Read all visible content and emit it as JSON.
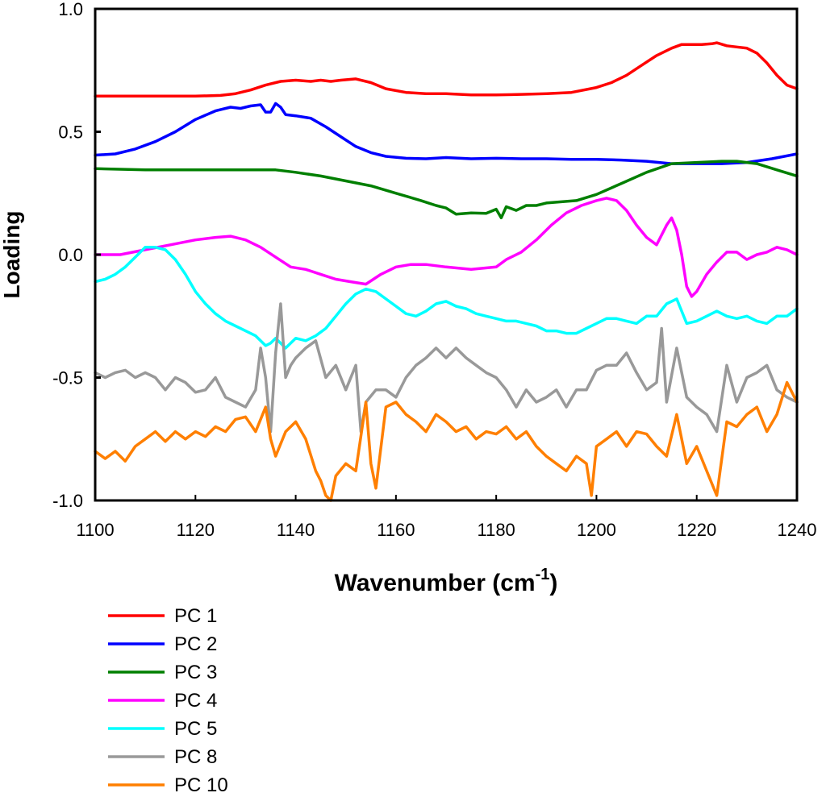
{
  "chart_data": {
    "type": "line",
    "xlabel": "Wavenumber (cm",
    "xlabel_sup": "-1",
    "xlabel_close": ")",
    "ylabel": "Loading",
    "xlim": [
      1100,
      1240
    ],
    "ylim": [
      -1.0,
      1.0
    ],
    "x_ticks": [
      1100,
      1120,
      1140,
      1160,
      1180,
      1200,
      1220,
      1240
    ],
    "x_tick_labels": [
      "1100",
      "1120",
      "1140",
      "1160",
      "1180",
      "1200",
      "1220",
      "1240"
    ],
    "y_ticks": [
      1.0,
      0.5,
      0.0,
      -0.5,
      -1.0
    ],
    "y_tick_labels": [
      "1.0",
      "0.5",
      "0.0",
      "-0.5",
      "-1.0"
    ],
    "grid": false,
    "legend_position": "below-left",
    "series": [
      {
        "name": "PC 1",
        "color": "#ff0000",
        "x": [
          1100,
          1105,
          1110,
          1115,
          1120,
          1125,
          1128,
          1131,
          1134,
          1137,
          1140,
          1143,
          1145,
          1147,
          1149,
          1152,
          1155,
          1158,
          1162,
          1166,
          1170,
          1175,
          1180,
          1185,
          1190,
          1195,
          1200,
          1203,
          1206,
          1209,
          1212,
          1215,
          1217,
          1219,
          1221,
          1223,
          1224,
          1226,
          1228,
          1230,
          1232,
          1234,
          1236,
          1238,
          1240
        ],
        "y": [
          0.645,
          0.645,
          0.645,
          0.645,
          0.645,
          0.648,
          0.655,
          0.67,
          0.69,
          0.705,
          0.71,
          0.705,
          0.71,
          0.705,
          0.71,
          0.715,
          0.7,
          0.675,
          0.66,
          0.655,
          0.655,
          0.65,
          0.65,
          0.652,
          0.655,
          0.66,
          0.68,
          0.7,
          0.73,
          0.77,
          0.81,
          0.84,
          0.855,
          0.855,
          0.855,
          0.858,
          0.862,
          0.85,
          0.845,
          0.84,
          0.82,
          0.78,
          0.73,
          0.69,
          0.675
        ]
      },
      {
        "name": "PC 2",
        "color": "#0000ff",
        "x": [
          1100,
          1104,
          1108,
          1112,
          1116,
          1120,
          1124,
          1127,
          1129,
          1131,
          1133,
          1134,
          1135,
          1136,
          1137,
          1138,
          1140,
          1143,
          1146,
          1149,
          1152,
          1155,
          1158,
          1162,
          1166,
          1170,
          1175,
          1180,
          1185,
          1190,
          1195,
          1200,
          1205,
          1210,
          1215,
          1220,
          1225,
          1230,
          1235,
          1240
        ],
        "y": [
          0.405,
          0.41,
          0.43,
          0.46,
          0.5,
          0.55,
          0.585,
          0.6,
          0.595,
          0.605,
          0.61,
          0.58,
          0.58,
          0.615,
          0.6,
          0.57,
          0.565,
          0.555,
          0.52,
          0.48,
          0.44,
          0.415,
          0.4,
          0.392,
          0.39,
          0.395,
          0.39,
          0.392,
          0.39,
          0.39,
          0.388,
          0.388,
          0.385,
          0.38,
          0.37,
          0.37,
          0.37,
          0.375,
          0.39,
          0.41
        ]
      },
      {
        "name": "PC 3",
        "color": "#007f00",
        "x": [
          1100,
          1110,
          1120,
          1130,
          1136,
          1140,
          1145,
          1150,
          1155,
          1160,
          1165,
          1168,
          1170,
          1172,
          1175,
          1178,
          1180,
          1181,
          1182,
          1184,
          1186,
          1188,
          1190,
          1193,
          1196,
          1200,
          1205,
          1210,
          1215,
          1220,
          1225,
          1228,
          1232,
          1236,
          1240
        ],
        "y": [
          0.35,
          0.345,
          0.345,
          0.345,
          0.345,
          0.335,
          0.32,
          0.3,
          0.28,
          0.25,
          0.22,
          0.2,
          0.19,
          0.165,
          0.17,
          0.168,
          0.185,
          0.15,
          0.195,
          0.18,
          0.2,
          0.2,
          0.21,
          0.215,
          0.22,
          0.245,
          0.29,
          0.335,
          0.37,
          0.375,
          0.38,
          0.38,
          0.37,
          0.345,
          0.32
        ]
      },
      {
        "name": "PC 4",
        "color": "#ff00ff",
        "x": [
          1100,
          1105,
          1110,
          1115,
          1120,
          1124,
          1127,
          1130,
          1133,
          1136,
          1139,
          1142,
          1145,
          1148,
          1151,
          1154,
          1157,
          1160,
          1163,
          1166,
          1170,
          1175,
          1180,
          1182,
          1185,
          1188,
          1191,
          1194,
          1197,
          1200,
          1202,
          1204,
          1206,
          1208,
          1210,
          1212,
          1214,
          1215,
          1216,
          1217,
          1218,
          1219,
          1220,
          1222,
          1224,
          1226,
          1228,
          1230,
          1232,
          1234,
          1236,
          1238,
          1240
        ],
        "y": [
          0.0,
          0.0,
          0.02,
          0.04,
          0.06,
          0.07,
          0.075,
          0.06,
          0.03,
          -0.01,
          -0.05,
          -0.06,
          -0.08,
          -0.1,
          -0.11,
          -0.12,
          -0.08,
          -0.05,
          -0.04,
          -0.04,
          -0.05,
          -0.06,
          -0.05,
          -0.02,
          0.01,
          0.06,
          0.12,
          0.17,
          0.2,
          0.22,
          0.23,
          0.22,
          0.18,
          0.12,
          0.07,
          0.04,
          0.12,
          0.15,
          0.1,
          0.0,
          -0.13,
          -0.17,
          -0.15,
          -0.08,
          -0.03,
          0.01,
          0.01,
          -0.02,
          0.0,
          0.01,
          0.03,
          0.02,
          0.0
        ]
      },
      {
        "name": "PC 5",
        "color": "#00ffff",
        "x": [
          1100,
          1102,
          1104,
          1106,
          1108,
          1110,
          1112,
          1114,
          1116,
          1118,
          1120,
          1122,
          1124,
          1126,
          1128,
          1130,
          1132,
          1134,
          1135,
          1136,
          1138,
          1140,
          1142,
          1144,
          1146,
          1148,
          1150,
          1152,
          1154,
          1156,
          1158,
          1160,
          1162,
          1164,
          1166,
          1168,
          1170,
          1172,
          1174,
          1176,
          1178,
          1180,
          1182,
          1184,
          1186,
          1188,
          1190,
          1192,
          1194,
          1196,
          1198,
          1200,
          1202,
          1204,
          1206,
          1208,
          1210,
          1212,
          1214,
          1216,
          1218,
          1220,
          1222,
          1224,
          1226,
          1228,
          1230,
          1232,
          1234,
          1236,
          1238,
          1240
        ],
        "y": [
          -0.11,
          -0.1,
          -0.08,
          -0.05,
          -0.01,
          0.03,
          0.03,
          0.02,
          -0.02,
          -0.08,
          -0.15,
          -0.2,
          -0.24,
          -0.27,
          -0.29,
          -0.31,
          -0.33,
          -0.37,
          -0.36,
          -0.34,
          -0.38,
          -0.34,
          -0.35,
          -0.33,
          -0.3,
          -0.25,
          -0.2,
          -0.16,
          -0.14,
          -0.15,
          -0.18,
          -0.21,
          -0.24,
          -0.25,
          -0.23,
          -0.2,
          -0.19,
          -0.21,
          -0.22,
          -0.24,
          -0.25,
          -0.26,
          -0.27,
          -0.27,
          -0.28,
          -0.29,
          -0.31,
          -0.31,
          -0.32,
          -0.32,
          -0.3,
          -0.28,
          -0.26,
          -0.26,
          -0.27,
          -0.28,
          -0.25,
          -0.25,
          -0.2,
          -0.18,
          -0.28,
          -0.27,
          -0.25,
          -0.23,
          -0.25,
          -0.26,
          -0.25,
          -0.27,
          -0.28,
          -0.25,
          -0.25,
          -0.22
        ]
      },
      {
        "name": "PC 8",
        "color": "#999999",
        "x": [
          1100,
          1102,
          1104,
          1106,
          1108,
          1110,
          1112,
          1114,
          1116,
          1118,
          1120,
          1122,
          1124,
          1126,
          1128,
          1130,
          1132,
          1133,
          1134,
          1135,
          1136,
          1137,
          1138,
          1139,
          1140,
          1142,
          1144,
          1146,
          1148,
          1150,
          1152,
          1153,
          1154,
          1156,
          1158,
          1160,
          1162,
          1164,
          1166,
          1168,
          1170,
          1172,
          1174,
          1176,
          1178,
          1180,
          1182,
          1184,
          1186,
          1188,
          1190,
          1192,
          1194,
          1196,
          1198,
          1200,
          1202,
          1204,
          1206,
          1208,
          1210,
          1212,
          1213,
          1214,
          1216,
          1218,
          1220,
          1222,
          1224,
          1226,
          1228,
          1230,
          1232,
          1234,
          1236,
          1238,
          1240
        ],
        "y": [
          -0.48,
          -0.5,
          -0.48,
          -0.47,
          -0.5,
          -0.48,
          -0.5,
          -0.55,
          -0.5,
          -0.52,
          -0.56,
          -0.55,
          -0.5,
          -0.58,
          -0.6,
          -0.62,
          -0.55,
          -0.38,
          -0.5,
          -0.72,
          -0.4,
          -0.2,
          -0.5,
          -0.45,
          -0.42,
          -0.38,
          -0.35,
          -0.5,
          -0.45,
          -0.55,
          -0.45,
          -0.72,
          -0.6,
          -0.55,
          -0.55,
          -0.58,
          -0.5,
          -0.45,
          -0.42,
          -0.38,
          -0.42,
          -0.38,
          -0.42,
          -0.45,
          -0.48,
          -0.5,
          -0.55,
          -0.62,
          -0.55,
          -0.6,
          -0.58,
          -0.55,
          -0.62,
          -0.55,
          -0.55,
          -0.47,
          -0.45,
          -0.45,
          -0.4,
          -0.48,
          -0.55,
          -0.52,
          -0.3,
          -0.6,
          -0.38,
          -0.58,
          -0.62,
          -0.65,
          -0.72,
          -0.45,
          -0.6,
          -0.5,
          -0.48,
          -0.45,
          -0.55,
          -0.58,
          -0.6
        ]
      },
      {
        "name": "PC 10",
        "color": "#ff7f00",
        "x": [
          1100,
          1102,
          1104,
          1106,
          1108,
          1110,
          1112,
          1114,
          1116,
          1118,
          1120,
          1122,
          1124,
          1126,
          1128,
          1130,
          1132,
          1134,
          1135,
          1136,
          1138,
          1140,
          1142,
          1144,
          1145,
          1146,
          1147,
          1148,
          1150,
          1152,
          1154,
          1155,
          1156,
          1158,
          1160,
          1162,
          1164,
          1166,
          1168,
          1170,
          1172,
          1174,
          1176,
          1178,
          1180,
          1182,
          1184,
          1186,
          1188,
          1190,
          1192,
          1194,
          1196,
          1198,
          1199,
          1200,
          1202,
          1204,
          1206,
          1208,
          1210,
          1212,
          1214,
          1216,
          1218,
          1220,
          1222,
          1224,
          1226,
          1228,
          1230,
          1232,
          1234,
          1236,
          1238,
          1240
        ],
        "y": [
          -0.8,
          -0.83,
          -0.8,
          -0.84,
          -0.78,
          -0.75,
          -0.72,
          -0.76,
          -0.72,
          -0.75,
          -0.72,
          -0.74,
          -0.7,
          -0.72,
          -0.67,
          -0.66,
          -0.72,
          -0.62,
          -0.75,
          -0.82,
          -0.72,
          -0.68,
          -0.75,
          -0.88,
          -0.92,
          -0.98,
          -1.0,
          -0.9,
          -0.85,
          -0.88,
          -0.6,
          -0.85,
          -0.95,
          -0.62,
          -0.6,
          -0.65,
          -0.68,
          -0.72,
          -0.65,
          -0.68,
          -0.72,
          -0.7,
          -0.75,
          -0.72,
          -0.73,
          -0.7,
          -0.75,
          -0.72,
          -0.78,
          -0.82,
          -0.85,
          -0.88,
          -0.82,
          -0.85,
          -0.98,
          -0.78,
          -0.75,
          -0.72,
          -0.78,
          -0.72,
          -0.73,
          -0.78,
          -0.82,
          -0.65,
          -0.85,
          -0.78,
          -0.88,
          -0.98,
          -0.68,
          -0.7,
          -0.65,
          -0.62,
          -0.72,
          -0.65,
          -0.52,
          -0.6
        ]
      }
    ]
  }
}
